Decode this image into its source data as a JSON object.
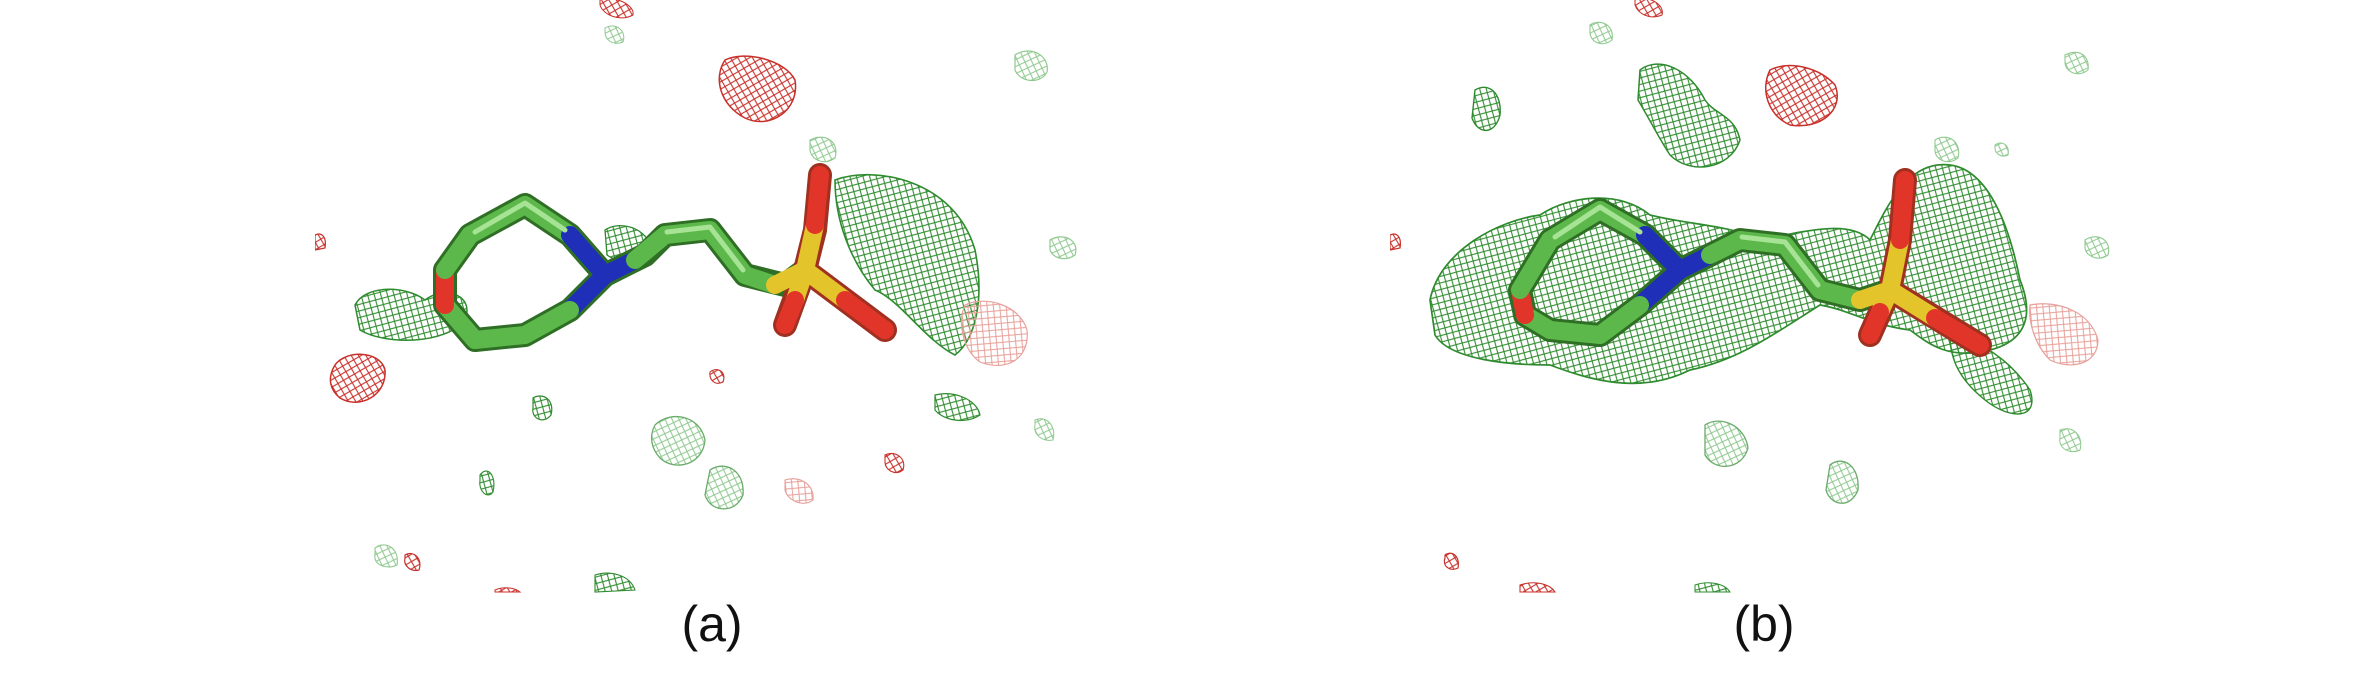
{
  "figure": {
    "panels": [
      {
        "caption": "(a)"
      },
      {
        "caption": "(b)"
      }
    ]
  },
  "colors": {
    "carbon": "#5cb84a",
    "carbon_dark": "#3f8f32",
    "oxygen": "#e2352a",
    "nitrogen": "#1f2fb8",
    "sulfur": "#e3c52b",
    "mesh_green": "#2e8b2e",
    "mesh_green_light": "#8fc98f",
    "mesh_red": "#c8302a",
    "mesh_red_light": "#e8a09a"
  }
}
